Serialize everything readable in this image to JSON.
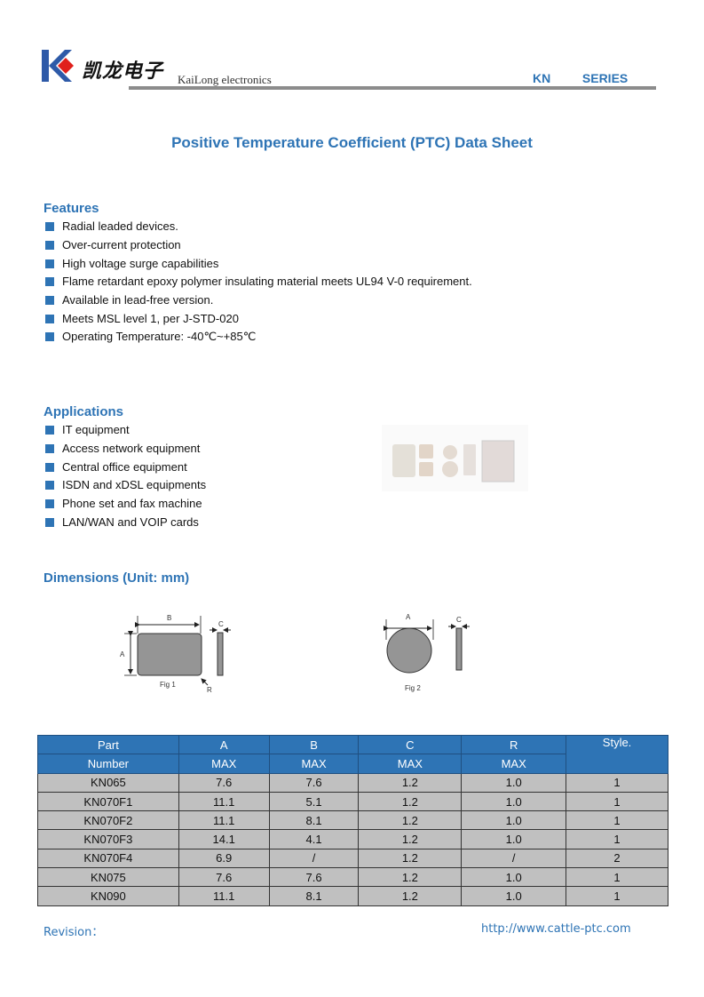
{
  "header": {
    "logo_cn": "凯龙电子",
    "logo_en": "KaiLong electronics",
    "series": "KN   SERIES",
    "brand_colors": {
      "blue": "#2e5aa8",
      "red": "#e0201c"
    }
  },
  "title": "Positive Temperature Coefficient (PTC) Data Sheet",
  "features": {
    "heading": "Features",
    "items": [
      "Radial leaded devices.",
      "Over-current protection",
      "High voltage surge capabilities",
      "Flame retardant epoxy polymer insulating material meets UL94 V-0 requirement.",
      "Available in lead-free version.",
      "Meets MSL level 1, per J-STD-020",
      "Operating Temperature: -40℃~+85℃"
    ]
  },
  "applications": {
    "heading": "Applications",
    "items": [
      "IT equipment",
      "Access network equipment",
      "Central office equipment",
      "ISDN and xDSL equipments",
      "Phone set and fax machine",
      "LAN/WAN and VOIP cards"
    ]
  },
  "dimensions": {
    "heading": "Dimensions (Unit: mm)",
    "fig1": {
      "caption": "Fig 1",
      "labels": {
        "a": "A",
        "b": "B",
        "c": "C",
        "r": "R"
      }
    },
    "fig2": {
      "caption": "Fig 2",
      "labels": {
        "a": "A",
        "c": "C"
      }
    }
  },
  "table": {
    "header_top": [
      "Part",
      "A",
      "B",
      "C",
      "R",
      "Style."
    ],
    "header_sub": [
      "Number",
      "MAX",
      "MAX",
      "MAX",
      "MAX"
    ],
    "rows": [
      [
        "KN065",
        "7.6",
        "7.6",
        "1.2",
        "1.0",
        "1"
      ],
      [
        "KN070F1",
        "11.1",
        "5.1",
        "1.2",
        "1.0",
        "1"
      ],
      [
        "KN070F2",
        "11.1",
        "8.1",
        "1.2",
        "1.0",
        "1"
      ],
      [
        "KN070F3",
        "14.1",
        "4.1",
        "1.2",
        "1.0",
        "1"
      ],
      [
        "KN070F4",
        "6.9",
        "/",
        "1.2",
        "/",
        "2"
      ],
      [
        "KN075",
        "7.6",
        "7.6",
        "1.2",
        "1.0",
        "1"
      ],
      [
        "KN090",
        "11.1",
        "8.1",
        "1.2",
        "1.0",
        "1"
      ]
    ]
  },
  "footer": {
    "revision": "Revision：",
    "url": "http://www.cattle-ptc.com"
  }
}
